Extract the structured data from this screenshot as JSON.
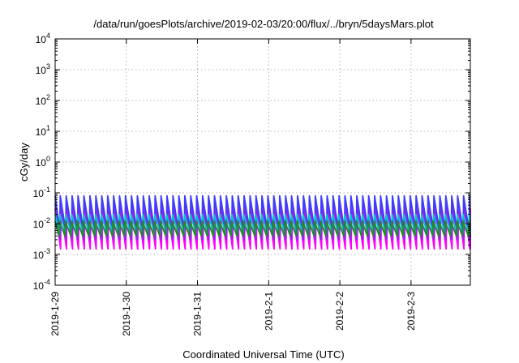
{
  "chart_data": {
    "type": "area",
    "title": "/data/run/goesPlots/archive/2019-02-03/20:00/flux/../bryn/5daysMars.plot",
    "xlabel": "Coordinated Universal Time (UTC)",
    "ylabel": "cGy/day",
    "y_scale": "log",
    "ylim": [
      0.0001,
      10000
    ],
    "y_ticks": [
      {
        "base": "10",
        "exp": "-4",
        "value": 0.0001
      },
      {
        "base": "10",
        "exp": "-3",
        "value": 0.001
      },
      {
        "base": "10",
        "exp": "-2",
        "value": 0.01
      },
      {
        "base": "10",
        "exp": "-1",
        "value": 0.1
      },
      {
        "base": "10",
        "exp": "0",
        "value": 1
      },
      {
        "base": "10",
        "exp": "1",
        "value": 10
      },
      {
        "base": "10",
        "exp": "2",
        "value": 100
      },
      {
        "base": "10",
        "exp": "3",
        "value": 1000
      },
      {
        "base": "10",
        "exp": "4",
        "value": 10000
      }
    ],
    "x_start": "2019-01-29T00:00",
    "x_end": "2019-02-03T20:00",
    "x_ticks": [
      "2019-1-29",
      "2019-1-30",
      "2019-1-31",
      "2019-2-1",
      "2019-2-2",
      "2019-2-3"
    ],
    "grid": true,
    "cycle_hours": 2.0,
    "series": [
      {
        "color": "#ff00ff",
        "peak": 0.03,
        "trough": 0.0015
      },
      {
        "color": "#8a2be2",
        "peak": 0.045,
        "trough": 0.003
      },
      {
        "color": "#3c3cff",
        "peak": 0.08,
        "trough": 0.006
      },
      {
        "color": "#00c8c8",
        "peak": 0.02,
        "trough": 0.005
      },
      {
        "color": "#228b22",
        "peak": 0.012,
        "trough": 0.004
      }
    ]
  }
}
